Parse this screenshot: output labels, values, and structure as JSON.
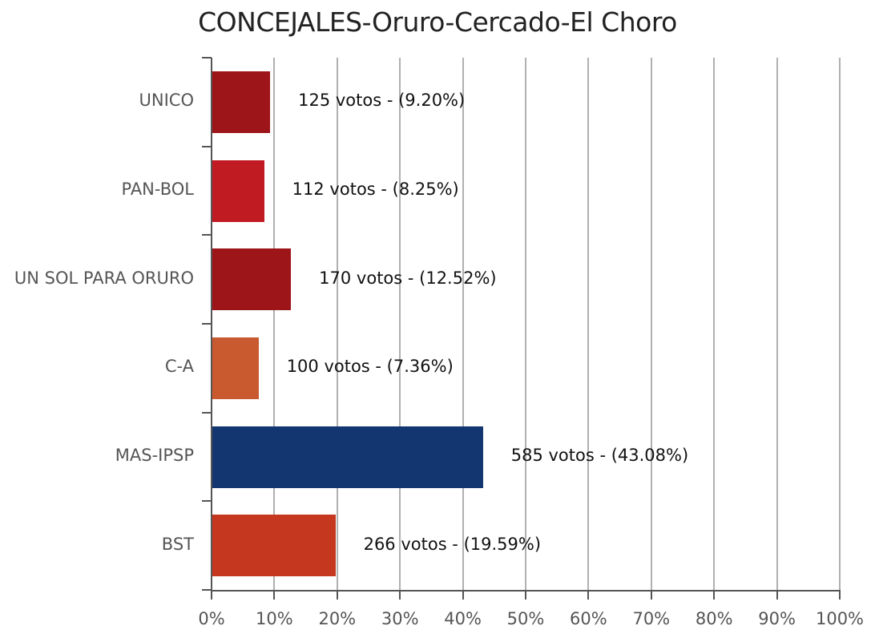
{
  "chart_data": {
    "type": "bar",
    "orientation": "horizontal",
    "title": "CONCEJALES-Oruro-Cercado-El Choro",
    "xlabel": "",
    "ylabel": "",
    "xlim": [
      0,
      100
    ],
    "grid": true,
    "x_ticks": [
      "0%",
      "10%",
      "20%",
      "30%",
      "40%",
      "50%",
      "60%",
      "70%",
      "80%",
      "90%",
      "100%"
    ],
    "categories": [
      "UNICO",
      "PAN-BOL",
      "UN SOL PARA ORURO",
      "C-A",
      "MAS-IPSP",
      "BST"
    ],
    "votes": [
      125,
      112,
      170,
      100,
      585,
      266
    ],
    "values": [
      9.2,
      8.25,
      12.52,
      7.36,
      43.08,
      19.59
    ],
    "colors": [
      "#9e1519",
      "#c01a22",
      "#9e1519",
      "#c95a30",
      "#143670",
      "#c5381f"
    ],
    "labels": [
      "125 votos - (9.20%)",
      "112 votos - (8.25%)",
      "170 votos - (12.52%)",
      "100 votos - (7.36%)",
      "585 votos - (43.08%)",
      "266 votos - (19.59%)"
    ]
  }
}
